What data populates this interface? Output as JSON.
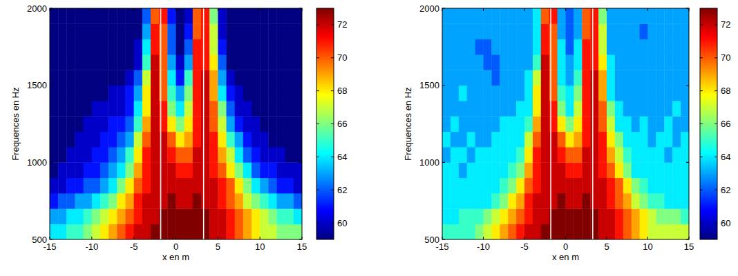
{
  "chart_data": [
    {
      "type": "heatmap",
      "x_label": "x en m",
      "y_label": "Frequences en Hz",
      "xlim": [
        -15,
        15
      ],
      "ylim": [
        500,
        2000
      ],
      "xticks": [
        -15,
        -10,
        -5,
        0,
        5,
        10,
        15
      ],
      "yticks": [
        500,
        1000,
        1500,
        2000
      ],
      "x": [
        -14.5,
        -13.5,
        -12.5,
        -11.5,
        -10.5,
        -9.5,
        -8.5,
        -7.5,
        -6.5,
        -5.5,
        -4.5,
        -3.5,
        -2.5,
        -1.5,
        -0.5,
        0.5,
        1.5,
        2.5,
        3.5,
        4.5,
        5.5,
        6.5,
        7.5,
        8.5,
        9.5,
        10.5,
        11.5,
        12.5,
        13.5,
        14.5
      ],
      "y": [
        550,
        650,
        750,
        850,
        950,
        1050,
        1150,
        1250,
        1350,
        1450,
        1550,
        1650,
        1750,
        1850,
        1950
      ],
      "values": [
        [
          64,
          64,
          65,
          65,
          66,
          67,
          68,
          69,
          70,
          71,
          72,
          72,
          73,
          73,
          73,
          73,
          73,
          73,
          73,
          72,
          72,
          71,
          70,
          69,
          68,
          67,
          67,
          66,
          66,
          66
        ],
        [
          63,
          63,
          64,
          64,
          65,
          66,
          67,
          68,
          69,
          70,
          71,
          72,
          72,
          73,
          73,
          73,
          73,
          73,
          73,
          72,
          72,
          71,
          70,
          69,
          68,
          67,
          66,
          65,
          65,
          64
        ],
        [
          61,
          62,
          62,
          63,
          63,
          64,
          65,
          66,
          68,
          69,
          71,
          72,
          72,
          72,
          73,
          72,
          72,
          73,
          72,
          72,
          71,
          70,
          69,
          67,
          66,
          65,
          64,
          63,
          63,
          62
        ],
        [
          60,
          60,
          61,
          61,
          62,
          62,
          63,
          64,
          66,
          68,
          70,
          71,
          72,
          72,
          72,
          72,
          72,
          72,
          72,
          72,
          71,
          70,
          68,
          66,
          64,
          63,
          62,
          61,
          61,
          60
        ],
        [
          59,
          60,
          60,
          60,
          61,
          61,
          62,
          63,
          64,
          66,
          69,
          71,
          72,
          72,
          72,
          71,
          71,
          72,
          72,
          71,
          70,
          68,
          66,
          64,
          62,
          61,
          61,
          60,
          60,
          60
        ],
        [
          59,
          59,
          60,
          60,
          60,
          61,
          61,
          62,
          63,
          65,
          68,
          71,
          72,
          72,
          71,
          70,
          70,
          72,
          72,
          71,
          69,
          67,
          64,
          62,
          61,
          60,
          60,
          60,
          59,
          59
        ],
        [
          59,
          59,
          59,
          60,
          60,
          60,
          61,
          61,
          62,
          63,
          67,
          70,
          72,
          72,
          70,
          68,
          69,
          71,
          72,
          71,
          68,
          65,
          63,
          61,
          60,
          60,
          59,
          59,
          59,
          59
        ],
        [
          59,
          59,
          59,
          59,
          60,
          60,
          60,
          61,
          61,
          62,
          65,
          69,
          72,
          71,
          68,
          66,
          68,
          71,
          72,
          70,
          67,
          63,
          61,
          60,
          60,
          59,
          59,
          59,
          59,
          59
        ],
        [
          59,
          59,
          59,
          59,
          59,
          60,
          60,
          60,
          60,
          61,
          64,
          68,
          72,
          71,
          66,
          64,
          67,
          71,
          72,
          70,
          66,
          62,
          60,
          60,
          59,
          59,
          59,
          59,
          59,
          59
        ],
        [
          59,
          59,
          59,
          59,
          59,
          59,
          59,
          60,
          60,
          61,
          63,
          68,
          72,
          70,
          65,
          63,
          66,
          71,
          72,
          69,
          64,
          61,
          60,
          59,
          59,
          59,
          59,
          59,
          59,
          59
        ],
        [
          59,
          59,
          59,
          59,
          59,
          59,
          59,
          59,
          59,
          60,
          62,
          67,
          72,
          70,
          64,
          61,
          65,
          71,
          72,
          69,
          63,
          60,
          59,
          59,
          59,
          59,
          59,
          59,
          59,
          59
        ],
        [
          59,
          59,
          59,
          59,
          59,
          59,
          59,
          59,
          59,
          59,
          60,
          65,
          72,
          70,
          63,
          60,
          63,
          71,
          71,
          68,
          62,
          59,
          59,
          59,
          59,
          59,
          59,
          59,
          59,
          59
        ],
        [
          59,
          59,
          59,
          59,
          59,
          59,
          59,
          59,
          59,
          59,
          60,
          64,
          71,
          70,
          62,
          59,
          62,
          71,
          71,
          67,
          61,
          59,
          59,
          59,
          59,
          59,
          59,
          59,
          59,
          59
        ],
        [
          59,
          59,
          59,
          59,
          59,
          59,
          59,
          59,
          59,
          59,
          59,
          63,
          71,
          70,
          62,
          59,
          61,
          70,
          71,
          67,
          60,
          59,
          59,
          59,
          59,
          59,
          59,
          59,
          59,
          59
        ],
        [
          59,
          59,
          59,
          59,
          59,
          59,
          59,
          59,
          59,
          59,
          59,
          62,
          70,
          71,
          61,
          59,
          60,
          70,
          71,
          66,
          60,
          59,
          59,
          59,
          59,
          59,
          59,
          59,
          59,
          59
        ]
      ],
      "colorbar_range": [
        59,
        73
      ],
      "colorbar_ticks": [
        60,
        62,
        64,
        66,
        68,
        70,
        72
      ],
      "vlines": [
        -1.8,
        3.3
      ]
    },
    {
      "type": "heatmap",
      "x_label": "x en m",
      "y_label": "Frequences en Hz",
      "xlim": [
        -15,
        15
      ],
      "ylim": [
        500,
        2000
      ],
      "xticks": [
        -15,
        -10,
        -5,
        0,
        5,
        10,
        15
      ],
      "yticks": [
        500,
        1000,
        1500,
        2000
      ],
      "x": [
        -14.5,
        -13.5,
        -12.5,
        -11.5,
        -10.5,
        -9.5,
        -8.5,
        -7.5,
        -6.5,
        -5.5,
        -4.5,
        -3.5,
        -2.5,
        -1.5,
        -0.5,
        0.5,
        1.5,
        2.5,
        3.5,
        4.5,
        5.5,
        6.5,
        7.5,
        8.5,
        9.5,
        10.5,
        11.5,
        12.5,
        13.5,
        14.5
      ],
      "y": [
        550,
        650,
        750,
        850,
        950,
        1050,
        1150,
        1250,
        1350,
        1450,
        1550,
        1650,
        1750,
        1850,
        1950
      ],
      "values": [
        [
          65,
          65,
          65,
          65,
          66,
          67,
          68,
          69,
          70,
          71,
          72,
          72,
          73,
          73,
          73,
          73,
          73,
          73,
          73,
          72,
          72,
          71,
          70,
          69,
          68,
          67,
          67,
          67,
          67,
          67
        ],
        [
          64,
          64,
          65,
          65,
          65,
          66,
          67,
          68,
          69,
          70,
          71,
          72,
          72,
          73,
          73,
          73,
          73,
          73,
          73,
          72,
          72,
          71,
          70,
          69,
          68,
          67,
          66,
          66,
          66,
          65
        ],
        [
          64,
          64,
          64,
          64,
          64,
          64,
          65,
          66,
          68,
          69,
          71,
          72,
          72,
          72,
          73,
          72,
          72,
          73,
          72,
          72,
          71,
          70,
          69,
          67,
          66,
          65,
          65,
          64,
          64,
          64
        ],
        [
          64,
          64,
          64,
          64,
          64,
          64,
          64,
          65,
          66,
          68,
          70,
          71,
          72,
          72,
          72,
          72,
          72,
          72,
          72,
          72,
          71,
          70,
          68,
          66,
          65,
          64,
          64,
          64,
          64,
          64
        ],
        [
          64,
          64,
          63,
          64,
          64,
          64,
          64,
          64,
          65,
          66,
          69,
          71,
          72,
          72,
          72,
          71,
          71,
          72,
          72,
          71,
          70,
          68,
          66,
          64,
          64,
          64,
          64,
          64,
          64,
          64
        ],
        [
          63,
          64,
          64,
          63,
          64,
          64,
          64,
          64,
          64,
          65,
          68,
          71,
          72,
          72,
          71,
          70,
          70,
          72,
          72,
          71,
          69,
          67,
          65,
          64,
          64,
          64,
          64,
          63,
          64,
          64
        ],
        [
          64,
          63,
          63,
          64,
          63,
          63,
          64,
          64,
          64,
          64,
          67,
          70,
          72,
          72,
          70,
          68,
          69,
          71,
          72,
          71,
          68,
          66,
          64,
          64,
          64,
          63,
          64,
          64,
          63,
          64
        ],
        [
          63,
          64,
          63,
          63,
          63,
          63,
          63,
          64,
          64,
          64,
          65,
          69,
          72,
          71,
          68,
          66,
          68,
          71,
          72,
          70,
          67,
          64,
          64,
          63,
          64,
          63,
          63,
          64,
          63,
          63
        ],
        [
          63,
          63,
          63,
          63,
          63,
          63,
          63,
          63,
          63,
          64,
          64,
          68,
          72,
          71,
          66,
          64,
          67,
          71,
          72,
          70,
          66,
          64,
          63,
          63,
          63,
          63,
          63,
          63,
          64,
          63
        ],
        [
          63,
          63,
          64,
          63,
          63,
          63,
          63,
          63,
          63,
          63,
          64,
          68,
          72,
          70,
          65,
          64,
          66,
          71,
          72,
          69,
          64,
          63,
          63,
          63,
          63,
          63,
          63,
          63,
          63,
          63
        ],
        [
          63,
          63,
          63,
          63,
          63,
          63,
          62,
          63,
          63,
          63,
          64,
          67,
          72,
          70,
          64,
          63,
          65,
          71,
          72,
          69,
          64,
          63,
          63,
          63,
          63,
          63,
          63,
          63,
          63,
          63
        ],
        [
          63,
          63,
          63,
          63,
          63,
          62,
          62,
          63,
          63,
          63,
          63,
          65,
          72,
          70,
          64,
          63,
          64,
          71,
          71,
          68,
          64,
          63,
          63,
          63,
          63,
          63,
          63,
          63,
          63,
          63
        ],
        [
          63,
          63,
          63,
          63,
          62,
          62,
          63,
          63,
          63,
          63,
          63,
          64,
          71,
          70,
          64,
          62,
          64,
          71,
          71,
          67,
          63,
          63,
          63,
          63,
          63,
          63,
          63,
          63,
          63,
          63
        ],
        [
          63,
          63,
          63,
          63,
          63,
          63,
          63,
          63,
          63,
          63,
          63,
          64,
          71,
          70,
          63,
          62,
          63,
          70,
          71,
          67,
          63,
          63,
          63,
          63,
          62,
          63,
          63,
          63,
          63,
          63
        ],
        [
          63,
          63,
          63,
          63,
          63,
          63,
          63,
          63,
          63,
          63,
          63,
          64,
          70,
          71,
          63,
          62,
          63,
          70,
          71,
          66,
          63,
          63,
          63,
          63,
          63,
          63,
          63,
          63,
          63,
          63
        ]
      ],
      "colorbar_range": [
        59,
        73
      ],
      "colorbar_ticks": [
        60,
        62,
        64,
        66,
        68,
        70,
        72
      ],
      "vlines": [
        -1.8,
        3.3
      ]
    }
  ]
}
